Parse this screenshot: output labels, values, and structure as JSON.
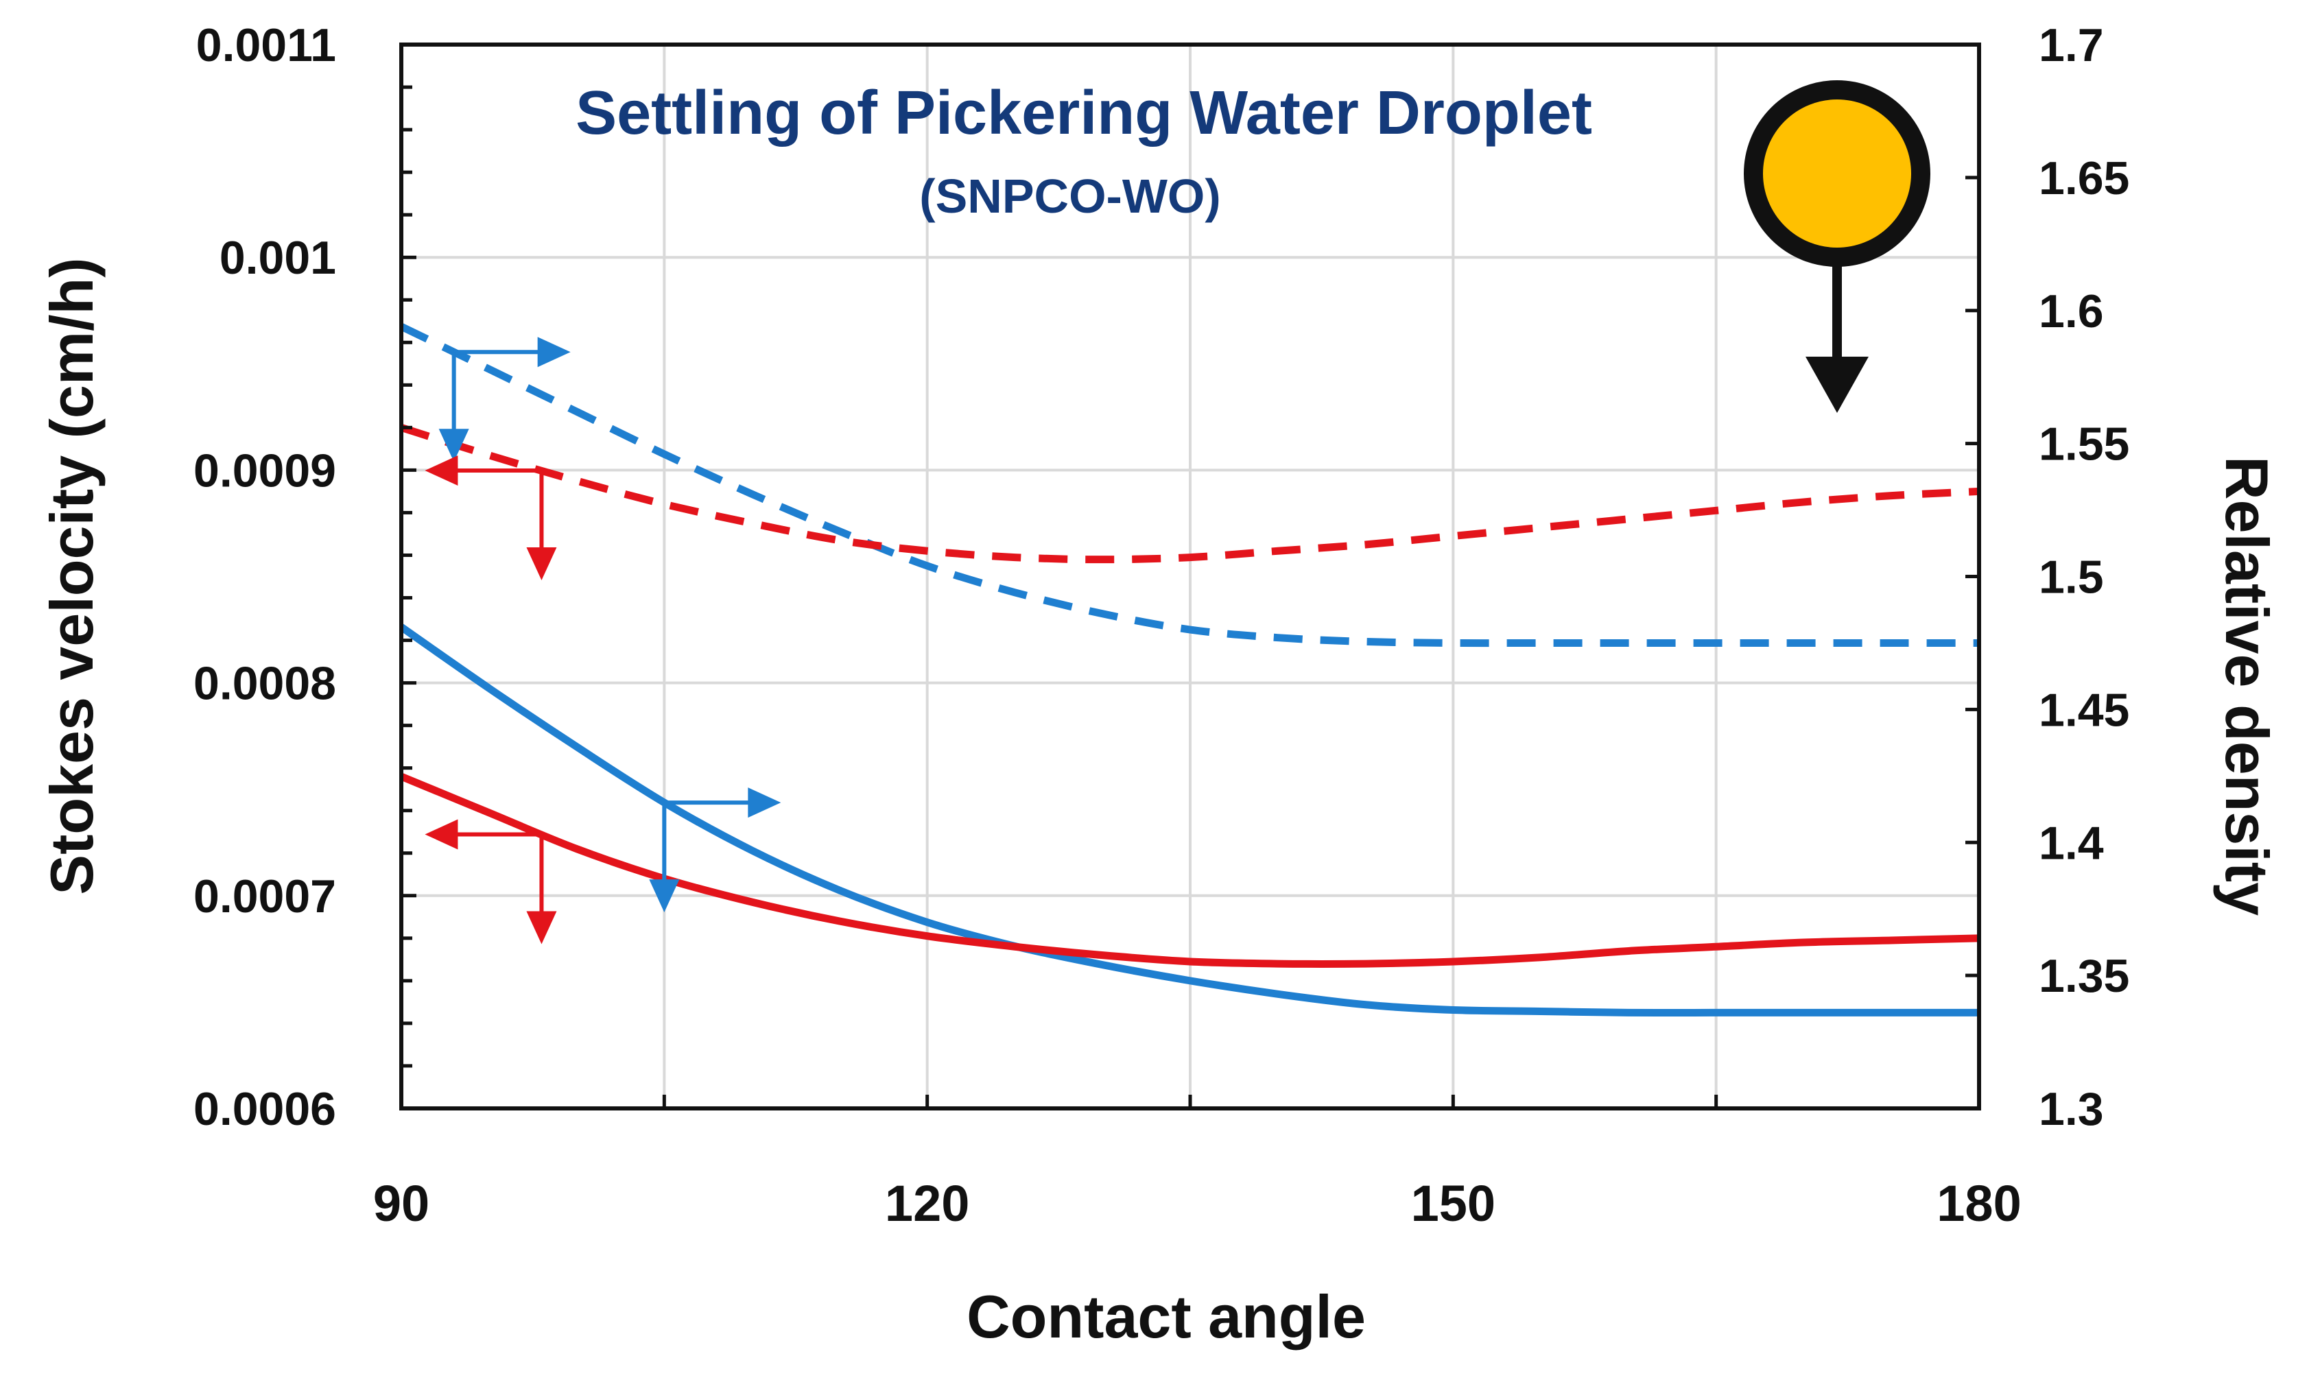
{
  "chart_data": {
    "type": "line",
    "title": "Settling of Pickering Water Droplet",
    "subtitle": "(SNPCO-WO)",
    "xlabel": "Contact angle",
    "ylabel_left": "Stokes velocity (cm/h)",
    "ylabel_right": "Relative density",
    "xlim": [
      90,
      180
    ],
    "ylim_left": [
      0.0006,
      0.0011
    ],
    "ylim_right": [
      1.3,
      1.7
    ],
    "x_ticks": [
      90,
      120,
      150,
      180
    ],
    "x_tick_labels": [
      "90",
      "120",
      "150",
      "180"
    ],
    "y_left_ticks": [
      0.0006,
      0.0007,
      0.0008,
      0.0009,
      0.001,
      0.0011
    ],
    "y_left_tick_labels": [
      "0.0006",
      "0.0007",
      "0.0008",
      "0.0009",
      "0.001",
      "0.0011"
    ],
    "y_right_ticks": [
      1.3,
      1.35,
      1.4,
      1.45,
      1.5,
      1.55,
      1.6,
      1.65,
      1.7
    ],
    "y_right_tick_labels": [
      "1.3",
      "1.35",
      "1.4",
      "1.45",
      "1.5",
      "1.55",
      "1.6",
      "1.65",
      "1.7"
    ],
    "grid": true,
    "series": [
      {
        "name": "Relative density (dashed blue)",
        "axis": "right",
        "style": "dashed",
        "color": "#1f7fd0",
        "x": [
          90,
          95,
          100,
          105,
          110,
          115,
          120,
          125,
          130,
          135,
          140,
          145,
          150,
          155,
          160,
          165,
          170,
          175,
          180
        ],
        "y": [
          1.594,
          1.578,
          1.562,
          1.546,
          1.531,
          1.517,
          1.504,
          1.494,
          1.486,
          1.48,
          1.477,
          1.4755,
          1.475,
          1.475,
          1.475,
          1.475,
          1.475,
          1.475,
          1.475
        ]
      },
      {
        "name": "Stokes velocity (dashed red)",
        "axis": "left",
        "style": "dashed",
        "color": "#e3141b",
        "x": [
          90,
          95,
          100,
          105,
          110,
          115,
          120,
          125,
          130,
          135,
          140,
          145,
          150,
          155,
          160,
          165,
          170,
          175,
          180
        ],
        "y": [
          0.00092,
          0.000907,
          0.000895,
          0.000884,
          0.000875,
          0.000867,
          0.000862,
          0.000859,
          0.000858,
          0.000859,
          0.000862,
          0.000865,
          0.000869,
          0.000873,
          0.000877,
          0.000881,
          0.000885,
          0.000888,
          0.00089
        ]
      },
      {
        "name": "Relative density (solid blue)",
        "axis": "right",
        "style": "solid",
        "color": "#1f7fd0",
        "x": [
          90,
          95,
          100,
          105,
          110,
          115,
          120,
          125,
          130,
          135,
          140,
          145,
          150,
          155,
          160,
          165,
          170,
          175,
          180
        ],
        "y": [
          1.481,
          1.458,
          1.436,
          1.415,
          1.397,
          1.382,
          1.37,
          1.361,
          1.354,
          1.348,
          1.343,
          1.339,
          1.337,
          1.3365,
          1.336,
          1.336,
          1.336,
          1.336,
          1.336
        ]
      },
      {
        "name": "Stokes velocity (solid red)",
        "axis": "left",
        "style": "solid",
        "color": "#e3141b",
        "x": [
          90,
          95,
          100,
          105,
          110,
          115,
          120,
          125,
          130,
          135,
          140,
          145,
          150,
          155,
          160,
          165,
          170,
          175,
          180
        ],
        "y": [
          0.000756,
          0.000739,
          0.000722,
          0.000708,
          0.000697,
          0.000688,
          0.000681,
          0.000676,
          0.000672,
          0.000669,
          0.000668,
          0.000668,
          0.000669,
          0.000671,
          0.000674,
          0.000676,
          0.000678,
          0.000679,
          0.00068
        ]
      }
    ],
    "axis_pointers": [
      {
        "series": 0,
        "x": 93,
        "direction": "right",
        "color": "#1f7fd0"
      },
      {
        "series": 1,
        "x": 98,
        "direction": "left",
        "color": "#e3141b"
      },
      {
        "series": 2,
        "x": 105,
        "direction": "right",
        "color": "#1f7fd0"
      },
      {
        "series": 3,
        "x": 98,
        "direction": "left",
        "color": "#e3141b"
      }
    ],
    "droplet_icon": {
      "fill": "#ffc000",
      "stroke": "#111111",
      "arrow": "down"
    }
  }
}
